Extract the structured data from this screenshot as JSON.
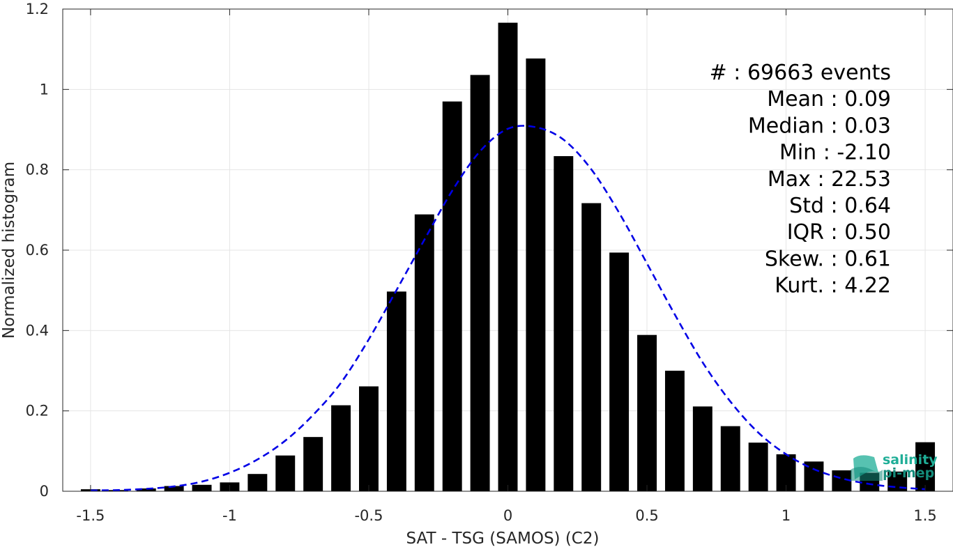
{
  "chart_data": {
    "type": "bar",
    "xlabel": "SAT - TSG (SAMOS) (C2)",
    "ylabel": "Normalized histogram",
    "xlim": [
      -1.6,
      1.6
    ],
    "ylim": [
      0,
      1.2
    ],
    "xticks": [
      -1.5,
      -1,
      -0.5,
      0,
      0.5,
      1,
      1.5
    ],
    "xtick_labels": [
      "-1.5",
      "-1",
      "-0.5",
      "0",
      "0.5",
      "1",
      "1.5"
    ],
    "yticks": [
      0,
      0.2,
      0.4,
      0.6,
      0.8,
      1,
      1.2
    ],
    "ytick_labels": [
      "0",
      "0.2",
      "0.4",
      "0.6",
      "0.8",
      "1",
      "1.2"
    ],
    "grid": true,
    "bar_width": 0.07,
    "bars": {
      "x": [
        -1.5,
        -1.4,
        -1.3,
        -1.2,
        -1.1,
        -1.0,
        -0.9,
        -0.8,
        -0.7,
        -0.6,
        -0.5,
        -0.4,
        -0.3,
        -0.2,
        -0.1,
        0.0,
        0.1,
        0.2,
        0.3,
        0.4,
        0.5,
        0.6,
        0.7,
        0.8,
        0.9,
        1.0,
        1.1,
        1.2,
        1.3,
        1.4,
        1.5
      ],
      "values": [
        0.005,
        0.003,
        0.007,
        0.013,
        0.016,
        0.022,
        0.043,
        0.089,
        0.135,
        0.214,
        0.261,
        0.497,
        0.689,
        0.97,
        1.036,
        1.166,
        1.077,
        0.834,
        0.717,
        0.594,
        0.389,
        0.3,
        0.211,
        0.162,
        0.121,
        0.092,
        0.074,
        0.052,
        0.046,
        0.049,
        0.122
      ],
      "color": "#000000"
    },
    "fit_curve": {
      "style": "dashed",
      "color": "#0000e6",
      "x": [
        -1.5,
        -1.4,
        -1.3,
        -1.2,
        -1.1,
        -1.0,
        -0.9,
        -0.8,
        -0.7,
        -0.6,
        -0.5,
        -0.4,
        -0.3,
        -0.2,
        -0.1,
        0.0,
        0.1,
        0.2,
        0.3,
        0.4,
        0.5,
        0.6,
        0.7,
        0.8,
        0.9,
        1.0,
        1.1,
        1.2,
        1.3,
        1.4,
        1.5
      ],
      "y": [
        0.002,
        0.003,
        0.006,
        0.012,
        0.024,
        0.046,
        0.079,
        0.126,
        0.19,
        0.27,
        0.378,
        0.501,
        0.626,
        0.748,
        0.846,
        0.902,
        0.906,
        0.875,
        0.801,
        0.693,
        0.567,
        0.44,
        0.321,
        0.223,
        0.146,
        0.092,
        0.055,
        0.032,
        0.018,
        0.01,
        0.005
      ]
    },
    "stats": [
      {
        "label": "#  ",
        "value": ": 69663 events"
      },
      {
        "label": "Mean ",
        "value": ": 0.09"
      },
      {
        "label": "Median ",
        "value": ": 0.03"
      },
      {
        "label": "Min ",
        "value": ": -2.10"
      },
      {
        "label": "Max ",
        "value": ": 22.53"
      },
      {
        "label": "Std ",
        "value": ": 0.64"
      },
      {
        "label": "IQR ",
        "value": ": 0.50"
      },
      {
        "label": "Skew. ",
        "value": ": 0.61"
      },
      {
        "label": "Kurt. ",
        "value": ": 4.22"
      }
    ]
  },
  "logo": {
    "line1": "salinity",
    "line2": "pi-mep",
    "color": "#1fae97"
  }
}
